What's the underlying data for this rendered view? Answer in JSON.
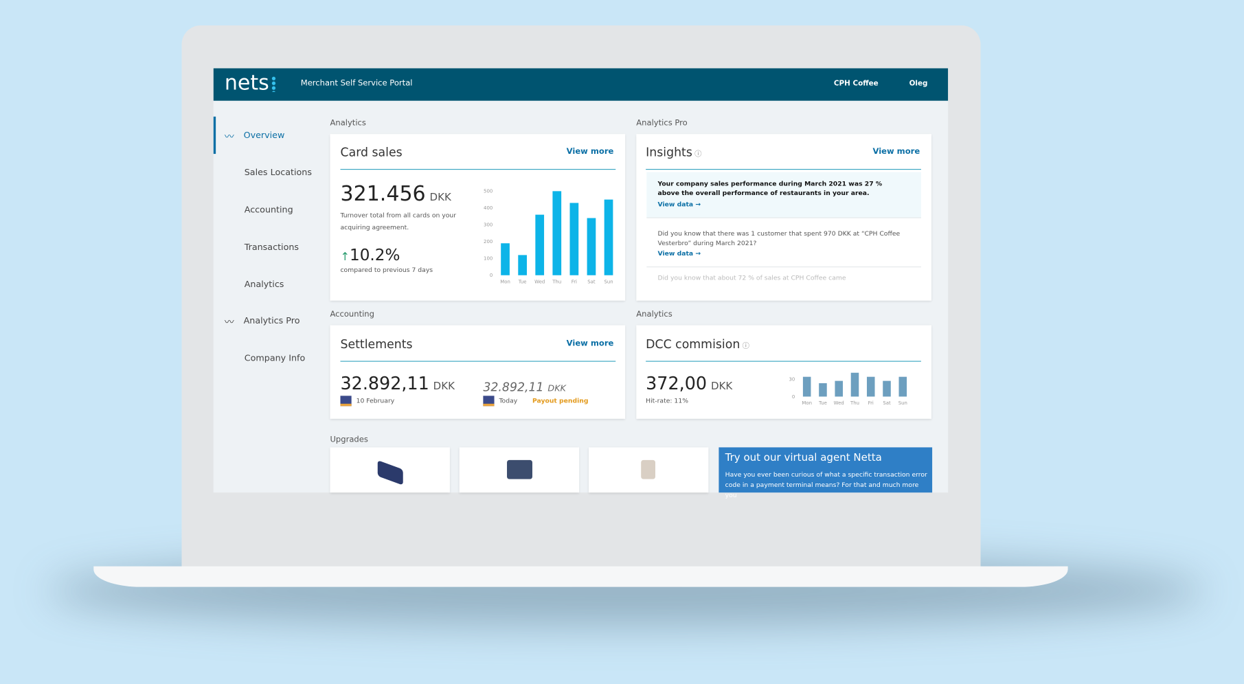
{
  "header": {
    "logo": "nets",
    "portal": "Merchant Self Service Portal",
    "merchant": "CPH Coffee",
    "user": "Oleg"
  },
  "sidebar": [
    "Overview",
    "Sales Locations",
    "Accounting",
    "Transactions",
    "Analytics",
    "Analytics Pro",
    "Company Info"
  ],
  "sections": [
    "Analytics",
    "Analytics Pro",
    "Accounting",
    "Analytics",
    "Upgrades"
  ],
  "card_sales": {
    "title": "Card sales",
    "view_more": "View more",
    "amount": "321.456",
    "currency": "DKK",
    "description": "Turnover total from all cards on your acquiring agreement.",
    "change": "10.2%",
    "change_note": "compared to previous 7 days"
  },
  "insights": {
    "title": "Insights",
    "view_more": "View more",
    "items": [
      {
        "text": "Your company sales performance during March 2021 was 27 % above the overall performance of restaurants in your area.",
        "link": "View data →"
      },
      {
        "text": "Did you know that there was 1 customer that spent 970 DKK at “CPH Coffee Vesterbro” during March 2021?",
        "link": "View data →"
      },
      {
        "text": "Did you know that about 72 % of sales at CPH Coffee came"
      }
    ]
  },
  "settlements": {
    "title": "Settlements",
    "view_more": "View more",
    "amount": "32.892,11",
    "currency": "DKK",
    "date": "10 February",
    "pending_amount": "32.892,11",
    "pending_currency": "DKK",
    "pending_date": "Today",
    "status": "Payout pending"
  },
  "dcc": {
    "title": "DCC commision",
    "amount": "372,00",
    "currency": "DKK",
    "hit_rate": "Hit-rate: 11%"
  },
  "netta": {
    "title": "Try out our virtual agent Netta",
    "text": "Have you ever been curious of what a specific transaction error code in a payment terminal means? For that and much more you"
  },
  "chart_data": [
    {
      "type": "bar",
      "categories": [
        "Mon",
        "Tue",
        "Wed",
        "Thu",
        "Fri",
        "Sat",
        "Sun"
      ],
      "values": [
        190,
        120,
        360,
        500,
        430,
        340,
        450
      ],
      "color": "#0db4e8",
      "ylim": [
        0,
        500
      ],
      "yticks": [
        0,
        100,
        200,
        300,
        400,
        500
      ]
    },
    {
      "type": "bar",
      "categories": [
        "Mon",
        "Tue",
        "Wed",
        "Thu",
        "Fri",
        "Sat",
        "Sun"
      ],
      "values": [
        34,
        23,
        27,
        41,
        34,
        27,
        34
      ],
      "color": "#6d9fbf",
      "ylim": [
        0,
        45
      ],
      "yticks": [
        0,
        30
      ]
    }
  ]
}
